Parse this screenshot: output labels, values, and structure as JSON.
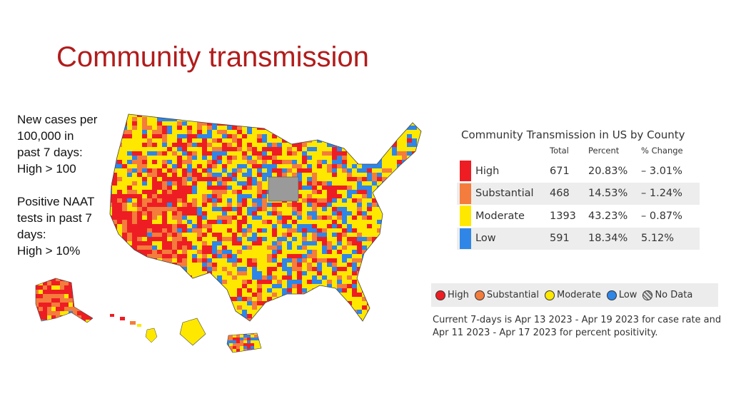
{
  "title": "Community transmission",
  "side_notes": {
    "cases": [
      "New cases per",
      "100,000 in",
      "past 7 days:",
      "High > 100"
    ],
    "naat": [
      "Positive NAAT",
      "tests in past 7",
      "days:",
      "High > 10%"
    ]
  },
  "table": {
    "title": "Community Transmission in US by County",
    "headers": [
      "Total",
      "Percent",
      "% Change"
    ],
    "rows": [
      {
        "label": "High",
        "total": "671",
        "percent": "20.83%",
        "change": "– 3.01%",
        "color": "#ee1d23"
      },
      {
        "label": "Substantial",
        "total": "468",
        "percent": "14.53%",
        "change": "– 1.24%",
        "color": "#f47c3c"
      },
      {
        "label": "Moderate",
        "total": "1393",
        "percent": "43.23%",
        "change": "– 0.87%",
        "color": "#ffe800"
      },
      {
        "label": "Low",
        "total": "591",
        "percent": "18.34%",
        "change": "5.12%",
        "color": "#2f86e6"
      }
    ]
  },
  "legend": [
    {
      "label": "High",
      "color": "#ee1d23"
    },
    {
      "label": "Substantial",
      "color": "#f47c3c"
    },
    {
      "label": "Moderate",
      "color": "#ffe800"
    },
    {
      "label": "Low",
      "color": "#2f86e6"
    },
    {
      "label": "No Data",
      "color": "hatch"
    }
  ],
  "footnote": "Current 7-days is Apr 13 2023 - Apr 19 2023 for case rate and Apr 11 2023 - Apr 17 2023 for percent positivity.",
  "map": {
    "colors": {
      "high": "#ee1d23",
      "substantial": "#f47c3c",
      "moderate": "#ffe800",
      "low": "#2f86e6",
      "nodata": "#9a9a9a"
    }
  }
}
